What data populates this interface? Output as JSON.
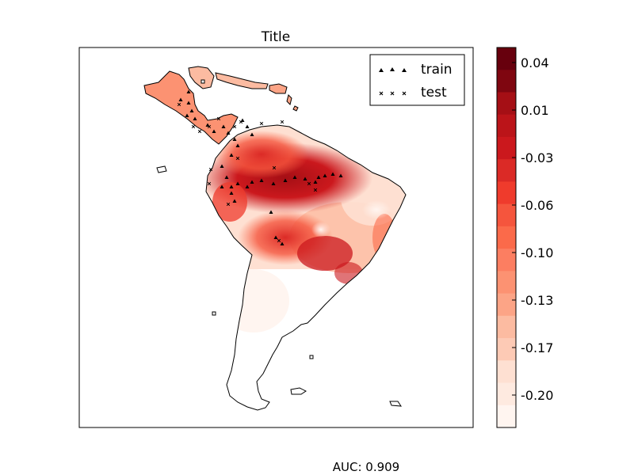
{
  "title": "Title",
  "legend": {
    "placement": "top-right",
    "items": [
      {
        "label": "train",
        "marker": "triangle-icon"
      },
      {
        "label": "test",
        "marker": "x-marker-icon"
      }
    ]
  },
  "colorbar": {
    "colormap": "Reds",
    "tick_labels": [
      "0.04",
      "0.01",
      "-0.03",
      "-0.06",
      "-0.10",
      "-0.13",
      "-0.17",
      "-0.20"
    ],
    "colors": [
      "#67000d",
      "#7f0610",
      "#a50f15",
      "#bb1419",
      "#cb181d",
      "#db2a26",
      "#ef3b2c",
      "#f5553d",
      "#fb6a4a",
      "#fc7e61",
      "#fc9272",
      "#fca486",
      "#fcbba1",
      "#fdcab5",
      "#fee0d2",
      "#feeae0",
      "#fff5f0"
    ]
  },
  "auc_text": "AUC: 0.909",
  "colors": {
    "frame": "#000000",
    "coast": "#000000",
    "background": "#ffffff"
  }
}
